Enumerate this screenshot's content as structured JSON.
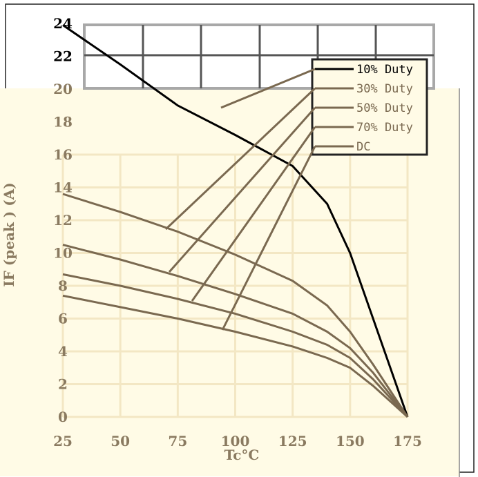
{
  "chart_data": {
    "type": "line",
    "title": "",
    "xlabel": "Tc°C",
    "ylabel": "IF (peak ) (A)",
    "xlim": [
      25,
      175
    ],
    "ylim": [
      0,
      24
    ],
    "x_ticks": [
      "25",
      "50",
      "75",
      "100",
      "125",
      "150",
      "175"
    ],
    "y_ticks": [
      "0",
      "2",
      "4",
      "6",
      "8",
      "10",
      "12",
      "14",
      "16",
      "18",
      "20",
      "22",
      "24"
    ],
    "grid": true,
    "legend_position": "top-right",
    "colors": {
      "background": "#fffbe6",
      "grid": "#f3e7c4",
      "series": "#7a6950",
      "legend_line_dark": "#000000",
      "tick_dark": "#000000",
      "tick_light": "#8a7a60"
    },
    "series": [
      {
        "name": "10% Duty",
        "x": [
          25,
          50,
          75,
          100,
          125,
          140,
          150,
          160,
          175
        ],
        "y": [
          23.9,
          21.5,
          19.0,
          17.2,
          15.3,
          13.0,
          10.0,
          6.0,
          0
        ]
      },
      {
        "name": "30% Duty",
        "x": [
          25,
          50,
          75,
          100,
          125,
          140,
          150,
          160,
          175
        ],
        "y": [
          13.6,
          12.5,
          11.3,
          9.9,
          8.3,
          6.8,
          5.2,
          3.2,
          0
        ]
      },
      {
        "name": "50% Duty",
        "x": [
          25,
          50,
          75,
          100,
          125,
          140,
          150,
          160,
          175
        ],
        "y": [
          10.5,
          9.6,
          8.6,
          7.5,
          6.3,
          5.2,
          4.2,
          2.7,
          0
        ]
      },
      {
        "name": "70% Duty",
        "x": [
          25,
          50,
          75,
          100,
          125,
          140,
          150,
          160,
          175
        ],
        "y": [
          8.7,
          8.0,
          7.2,
          6.3,
          5.2,
          4.4,
          3.6,
          2.3,
          0
        ]
      },
      {
        "name": "DC",
        "x": [
          25,
          50,
          75,
          100,
          125,
          140,
          150,
          160,
          175
        ],
        "y": [
          7.4,
          6.7,
          6.0,
          5.2,
          4.3,
          3.6,
          3.0,
          1.9,
          0
        ]
      }
    ]
  }
}
